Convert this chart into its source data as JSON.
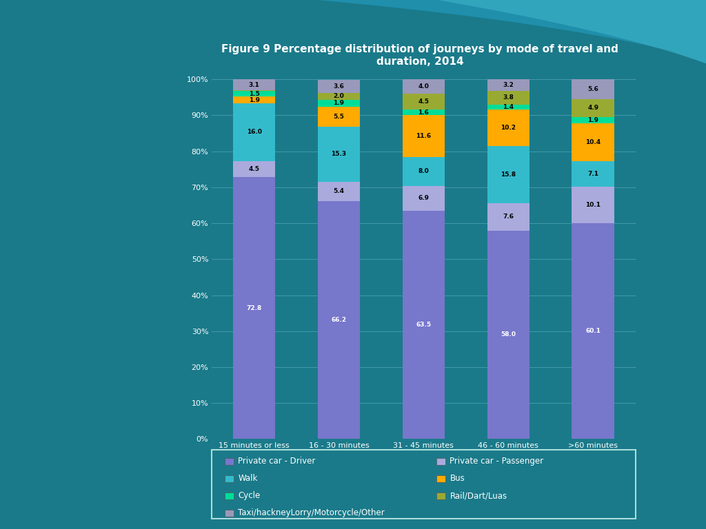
{
  "title": "Figure 9 Percentage distribution of journeys by mode of travel and\nduration, 2014",
  "categories": [
    "15 minutes or less",
    "16 - 30 minutes",
    "31 - 45 minutes",
    "46 - 60 minutes",
    ">60 minutes"
  ],
  "series": [
    {
      "name": "Private car - Driver",
      "values": [
        72.8,
        66.2,
        63.5,
        58.0,
        60.1
      ],
      "color": "#7777cc",
      "text_color": "white"
    },
    {
      "name": "Private car - Passenger",
      "values": [
        4.5,
        5.4,
        6.9,
        7.6,
        10.1
      ],
      "color": "#aaaadd",
      "text_color": "black"
    },
    {
      "name": "Walk",
      "values": [
        16.0,
        15.3,
        8.0,
        15.8,
        7.1
      ],
      "color": "#33bbcc",
      "text_color": "black"
    },
    {
      "name": "Bus",
      "values": [
        1.9,
        5.5,
        11.6,
        10.2,
        10.4
      ],
      "color": "#ffaa00",
      "text_color": "black"
    },
    {
      "name": "Cycle",
      "values": [
        1.5,
        1.9,
        1.6,
        1.4,
        1.9
      ],
      "color": "#00dd99",
      "text_color": "black"
    },
    {
      "name": "Rail/Dart/Luas",
      "values": [
        0.2,
        2.0,
        4.5,
        3.8,
        4.9
      ],
      "color": "#99aa33",
      "text_color": "black"
    },
    {
      "name": "Taxi/hackneyLorry/Motorcycle/Other",
      "values": [
        3.1,
        3.6,
        4.0,
        3.2,
        5.6
      ],
      "color": "#9999bb",
      "text_color": "black"
    }
  ],
  "background_color": "#1a7a8a",
  "chart_bg_color": "#1a7a8a",
  "legend_bg_color": "#1a7a8a",
  "grid_color": "#4499aa",
  "text_color": "white",
  "axis_color": "#aadddd",
  "ylim": [
    0,
    100
  ],
  "title_fontsize": 11,
  "tick_fontsize": 8,
  "bar_width": 0.5,
  "wave_color_right": "#2299bb",
  "wave_color_left": "#1a7a8a"
}
